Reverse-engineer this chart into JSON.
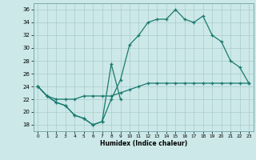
{
  "xlabel": "Humidex (Indice chaleur)",
  "background_color": "#cce8e8",
  "grid_color": "#aacccc",
  "line_color": "#1a7a6e",
  "xlim": [
    -0.5,
    23.5
  ],
  "ylim": [
    17,
    37
  ],
  "xticks": [
    0,
    1,
    2,
    3,
    4,
    5,
    6,
    7,
    8,
    9,
    10,
    11,
    12,
    13,
    14,
    15,
    16,
    17,
    18,
    19,
    20,
    21,
    22,
    23
  ],
  "yticks": [
    18,
    20,
    22,
    24,
    26,
    28,
    30,
    32,
    34,
    36
  ],
  "line1_x": [
    0,
    1,
    2,
    3,
    4,
    5,
    6,
    7,
    8,
    9
  ],
  "line1_y": [
    24,
    22.5,
    21.5,
    21,
    19.5,
    19,
    18,
    18.5,
    27.5,
    22
  ],
  "line2_x": [
    0,
    1,
    2,
    3,
    4,
    5,
    6,
    7,
    8,
    9,
    10,
    11,
    12,
    13,
    14,
    15,
    16,
    17,
    18,
    19,
    20,
    21,
    22,
    23
  ],
  "line2_y": [
    24,
    22.5,
    22,
    22,
    22,
    22.5,
    22.5,
    22.5,
    22.5,
    23,
    23.5,
    24,
    24.5,
    24.5,
    24.5,
    24.5,
    24.5,
    24.5,
    24.5,
    24.5,
    24.5,
    24.5,
    24.5,
    24.5
  ],
  "line3_x": [
    0,
    1,
    2,
    3,
    4,
    5,
    6,
    7,
    8,
    9,
    10,
    11,
    12,
    13,
    14,
    15,
    16,
    17,
    18,
    19,
    20,
    21,
    22,
    23
  ],
  "line3_y": [
    24,
    22.5,
    21.5,
    21,
    19.5,
    19,
    18,
    18.5,
    22,
    25,
    30.5,
    32,
    34,
    34.5,
    34.5,
    36,
    34.5,
    34,
    35,
    32,
    31,
    28,
    27,
    24.5
  ]
}
